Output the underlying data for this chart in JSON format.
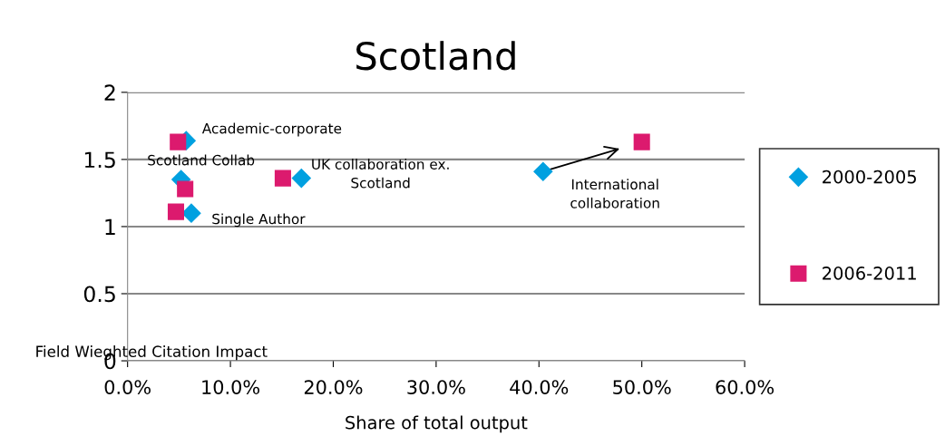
{
  "chart_data": {
    "type": "scatter",
    "title": "Scotland",
    "xlabel": "Share of total output",
    "ylabel": "Field Wieghted Citation Impact",
    "series": [
      {
        "name": "2000-2005",
        "color": "#00a0e0",
        "marker": "diamond",
        "x": [
          5.7,
          5.2,
          6.2,
          16.9,
          40.4
        ],
        "values": [
          1.64,
          1.35,
          1.1,
          1.36,
          1.41
        ]
      },
      {
        "name": "2006-2011",
        "color": "#dc1a6e",
        "marker": "square",
        "x": [
          4.9,
          5.6,
          4.7,
          15.1,
          50.0
        ],
        "values": [
          1.63,
          1.28,
          1.11,
          1.36,
          1.63
        ]
      }
    ],
    "annotations": [
      "Academic-corporate",
      "Scotland Collab",
      "UK collaboration ex.\nScotland",
      "Single Author",
      "International\ncollaboration"
    ],
    "xlim": [
      0,
      60
    ],
    "xticks": [
      {
        "value": 0,
        "label": "0.0%"
      },
      {
        "value": 10,
        "label": "10.0%"
      },
      {
        "value": 20,
        "label": "20.0%"
      },
      {
        "value": 30,
        "label": "30.0%"
      },
      {
        "value": 40,
        "label": "40.0%"
      },
      {
        "value": 50,
        "label": "50.0%"
      },
      {
        "value": 60,
        "label": "60.0%"
      }
    ],
    "ylim": [
      0,
      2
    ],
    "yticks": [
      0,
      0.5,
      1,
      1.5,
      2
    ],
    "grid": "y",
    "legend": "right"
  }
}
